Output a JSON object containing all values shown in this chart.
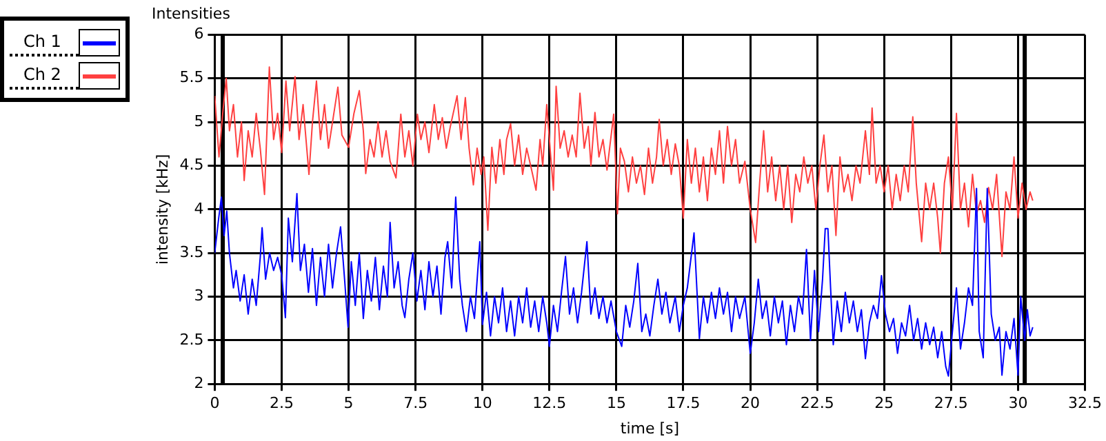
{
  "chart_data": {
    "type": "line",
    "title": "Intensities",
    "xlabel": "time [s]",
    "ylabel": "intensity [kHz]",
    "xlim": [
      0,
      32.5
    ],
    "xticks": [
      0,
      2.5,
      5,
      7.5,
      10,
      12.5,
      15,
      17.5,
      20,
      22.5,
      25,
      27.5,
      30,
      32.5
    ],
    "ylim": [
      2,
      6
    ],
    "yticks": [
      2,
      2.5,
      3,
      3.5,
      4,
      4.5,
      5,
      5.5,
      6
    ],
    "grid": true,
    "legend": "top left",
    "marker": "none",
    "line_style": "solid",
    "ref_lines": [
      {
        "axis": "x",
        "value": 0.3,
        "color": "#000000"
      },
      {
        "axis": "x",
        "value": 30.25,
        "color": "#000000"
      }
    ],
    "series": [
      {
        "name": "Ch 1",
        "color": "#0000ff",
        "x": [
          0,
          0.15,
          0.25,
          0.35,
          0.45,
          0.55,
          0.7,
          0.8,
          0.95,
          1.1,
          1.25,
          1.4,
          1.55,
          1.7,
          1.77,
          1.9,
          2.05,
          2.2,
          2.35,
          2.5,
          2.64,
          2.75,
          2.9,
          3.07,
          3.2,
          3.35,
          3.5,
          3.65,
          3.8,
          3.95,
          4.1,
          4.25,
          4.4,
          4.55,
          4.7,
          4.85,
          4.98,
          5.1,
          5.25,
          5.4,
          5.55,
          5.7,
          5.85,
          6.0,
          6.15,
          6.3,
          6.45,
          6.55,
          6.7,
          6.85,
          7.0,
          7.1,
          7.25,
          7.4,
          7.55,
          7.7,
          7.85,
          8.0,
          8.15,
          8.3,
          8.45,
          8.6,
          8.7,
          8.85,
          9.0,
          9.15,
          9.25,
          9.4,
          9.55,
          9.7,
          9.9,
          10.0,
          10.15,
          10.3,
          10.45,
          10.6,
          10.75,
          10.9,
          11.05,
          11.2,
          11.35,
          11.5,
          11.65,
          11.8,
          11.95,
          12.1,
          12.25,
          12.4,
          12.5,
          12.65,
          12.8,
          12.95,
          13.1,
          13.25,
          13.4,
          13.55,
          13.7,
          13.9,
          14.05,
          14.2,
          14.35,
          14.5,
          14.65,
          14.8,
          15.0,
          15.2,
          15.35,
          15.5,
          15.65,
          15.8,
          15.95,
          16.1,
          16.25,
          16.4,
          16.55,
          16.7,
          16.85,
          17.0,
          17.2,
          17.35,
          17.5,
          17.65,
          17.9,
          18.1,
          18.25,
          18.4,
          18.55,
          18.7,
          18.85,
          19.0,
          19.15,
          19.3,
          19.45,
          19.6,
          19.8,
          20.0,
          20.15,
          20.3,
          20.45,
          20.6,
          20.75,
          20.9,
          21.05,
          21.2,
          21.35,
          21.5,
          21.65,
          21.8,
          21.95,
          22.1,
          22.25,
          22.4,
          22.55,
          22.7,
          22.8,
          22.9,
          23.0,
          23.1,
          23.25,
          23.4,
          23.55,
          23.7,
          23.85,
          24.0,
          24.15,
          24.3,
          24.45,
          24.6,
          24.75,
          24.9,
          25.05,
          25.2,
          25.35,
          25.5,
          25.65,
          25.8,
          25.95,
          26.1,
          26.25,
          26.4,
          26.55,
          26.7,
          26.85,
          27.0,
          27.15,
          27.3,
          27.4,
          27.55,
          27.7,
          27.85,
          28.0,
          28.15,
          28.3,
          28.45,
          28.55,
          28.7,
          28.85,
          29.0,
          29.15,
          29.3,
          29.4,
          29.55,
          29.7,
          29.85,
          30.0,
          30.1,
          30.25,
          30.35,
          30.45,
          30.55
        ],
        "values": [
          3.5,
          3.9,
          4.14,
          3.7,
          3.98,
          3.5,
          3.1,
          3.3,
          2.95,
          3.25,
          2.8,
          3.2,
          2.9,
          3.45,
          3.79,
          3.2,
          3.5,
          3.3,
          3.45,
          3.25,
          2.76,
          3.9,
          3.4,
          4.18,
          3.3,
          3.6,
          3.05,
          3.55,
          2.9,
          3.45,
          3.0,
          3.6,
          3.1,
          3.5,
          3.8,
          3.2,
          2.65,
          3.4,
          2.9,
          3.5,
          2.75,
          3.3,
          2.95,
          3.45,
          2.85,
          3.35,
          3.0,
          3.85,
          3.1,
          3.4,
          2.9,
          2.76,
          3.2,
          3.5,
          2.95,
          3.3,
          2.85,
          3.4,
          3.0,
          3.35,
          2.8,
          3.45,
          3.63,
          3.1,
          4.14,
          3.2,
          2.9,
          2.6,
          3.0,
          2.75,
          3.63,
          2.68,
          3.05,
          2.55,
          3.0,
          2.7,
          3.1,
          2.6,
          2.95,
          2.55,
          3.0,
          2.7,
          3.1,
          2.65,
          2.95,
          2.6,
          3.0,
          2.7,
          2.43,
          2.9,
          2.6,
          3.05,
          3.46,
          2.8,
          3.1,
          2.7,
          3.05,
          3.63,
          2.8,
          3.1,
          2.75,
          3.0,
          2.7,
          2.95,
          2.6,
          2.43,
          2.9,
          2.65,
          2.95,
          3.38,
          2.6,
          2.8,
          2.55,
          2.9,
          3.2,
          2.8,
          3.05,
          2.7,
          3.0,
          2.6,
          2.9,
          3.1,
          3.73,
          2.52,
          3.0,
          2.7,
          3.05,
          2.75,
          3.1,
          2.8,
          3.05,
          2.6,
          3.0,
          2.75,
          3.0,
          2.35,
          2.7,
          3.2,
          2.75,
          2.95,
          2.55,
          3.0,
          2.7,
          2.95,
          2.45,
          2.9,
          2.6,
          3.0,
          2.8,
          3.54,
          2.5,
          3.3,
          2.6,
          3.2,
          3.78,
          3.78,
          3.1,
          2.45,
          2.95,
          2.6,
          3.05,
          2.7,
          2.95,
          2.6,
          2.85,
          2.29,
          2.7,
          2.9,
          2.75,
          3.24,
          2.8,
          2.6,
          2.75,
          2.35,
          2.7,
          2.55,
          2.9,
          2.5,
          2.75,
          2.4,
          2.7,
          2.45,
          2.65,
          2.3,
          2.6,
          2.2,
          2.09,
          2.6,
          3.1,
          2.4,
          2.7,
          3.1,
          2.9,
          4.24,
          2.6,
          2.3,
          4.24,
          2.8,
          2.5,
          2.65,
          2.1,
          2.6,
          2.4,
          2.75,
          2.1,
          3.0,
          2.5,
          2.85,
          2.55,
          2.65
        ]
      },
      {
        "name": "Ch 2",
        "color": "#ff4040",
        "x": [
          0,
          0.16,
          0.3,
          0.43,
          0.55,
          0.7,
          0.85,
          1.0,
          1.1,
          1.25,
          1.4,
          1.55,
          1.7,
          1.86,
          2.04,
          2.2,
          2.35,
          2.5,
          2.66,
          2.8,
          3.0,
          3.15,
          3.3,
          3.52,
          3.65,
          3.8,
          3.95,
          4.1,
          4.25,
          4.4,
          4.6,
          4.75,
          5.0,
          5.2,
          5.4,
          5.55,
          5.64,
          5.8,
          5.95,
          6.1,
          6.25,
          6.4,
          6.55,
          6.77,
          6.95,
          7.1,
          7.25,
          7.4,
          7.57,
          7.7,
          7.85,
          8.0,
          8.2,
          8.35,
          8.5,
          8.65,
          8.8,
          9.05,
          9.2,
          9.36,
          9.5,
          9.66,
          9.8,
          9.95,
          10.05,
          10.2,
          10.35,
          10.5,
          10.65,
          10.8,
          10.9,
          11.05,
          11.2,
          11.35,
          11.5,
          11.65,
          11.8,
          12.0,
          12.15,
          12.25,
          12.4,
          12.55,
          12.65,
          12.75,
          12.9,
          13.05,
          13.2,
          13.35,
          13.5,
          13.64,
          13.8,
          13.95,
          14.05,
          14.2,
          14.35,
          14.5,
          14.65,
          14.9,
          15.04,
          15.15,
          15.3,
          15.45,
          15.6,
          15.75,
          15.9,
          16.05,
          16.2,
          16.35,
          16.5,
          16.6,
          16.75,
          16.9,
          17.05,
          17.2,
          17.35,
          17.5,
          17.65,
          17.8,
          17.95,
          18.1,
          18.25,
          18.4,
          18.55,
          18.7,
          18.85,
          19.0,
          19.15,
          19.3,
          19.45,
          19.6,
          19.8,
          20.0,
          20.2,
          20.35,
          20.5,
          20.65,
          20.8,
          20.95,
          21.1,
          21.25,
          21.4,
          21.55,
          21.7,
          21.85,
          22.0,
          22.15,
          22.3,
          22.45,
          22.6,
          22.75,
          22.9,
          23.05,
          23.2,
          23.35,
          23.5,
          23.65,
          23.8,
          23.95,
          24.1,
          24.3,
          24.45,
          24.55,
          24.7,
          24.85,
          25.0,
          25.15,
          25.3,
          25.45,
          25.6,
          25.75,
          25.9,
          26.07,
          26.2,
          26.4,
          26.55,
          26.7,
          26.85,
          27.0,
          27.1,
          27.25,
          27.4,
          27.55,
          27.7,
          27.85,
          28.0,
          28.15,
          28.3,
          28.45,
          28.6,
          28.75,
          28.9,
          29.05,
          29.2,
          29.4,
          29.55,
          29.7,
          29.85,
          30.0,
          30.15,
          30.3,
          30.45,
          30.55
        ],
        "values": [
          5.3,
          4.6,
          5.1,
          5.5,
          4.9,
          5.2,
          4.6,
          5.0,
          4.33,
          4.9,
          4.6,
          5.1,
          4.7,
          4.17,
          5.63,
          4.8,
          5.1,
          4.65,
          5.47,
          4.9,
          5.52,
          4.8,
          5.2,
          4.4,
          5.0,
          5.47,
          4.8,
          5.2,
          4.7,
          5.0,
          5.4,
          4.85,
          4.71,
          5.1,
          5.36,
          4.9,
          4.41,
          4.8,
          4.6,
          5.0,
          4.6,
          4.9,
          4.55,
          4.36,
          5.09,
          4.6,
          4.9,
          4.5,
          5.09,
          4.8,
          5.0,
          4.65,
          5.2,
          4.8,
          5.05,
          4.7,
          4.95,
          5.3,
          4.8,
          5.28,
          4.7,
          4.28,
          4.7,
          4.4,
          4.6,
          3.76,
          4.71,
          4.3,
          4.8,
          4.4,
          4.8,
          4.98,
          4.5,
          4.85,
          4.4,
          4.7,
          4.5,
          4.22,
          4.8,
          4.5,
          5.2,
          4.6,
          4.22,
          5.41,
          4.7,
          4.9,
          4.6,
          4.85,
          4.6,
          5.33,
          4.7,
          4.95,
          4.5,
          5.11,
          4.6,
          4.8,
          4.45,
          5.09,
          3.95,
          4.7,
          4.55,
          4.2,
          4.6,
          4.3,
          4.5,
          4.17,
          4.7,
          4.3,
          4.6,
          5.03,
          4.5,
          4.8,
          4.4,
          4.75,
          4.5,
          3.9,
          4.8,
          4.3,
          4.7,
          4.2,
          4.6,
          4.1,
          4.7,
          4.4,
          4.9,
          4.3,
          4.95,
          4.5,
          4.8,
          4.3,
          4.55,
          4.0,
          3.62,
          4.3,
          4.9,
          4.2,
          4.6,
          4.1,
          4.5,
          4.0,
          4.5,
          3.85,
          4.4,
          4.2,
          4.6,
          4.3,
          4.5,
          4.0,
          4.5,
          4.85,
          4.2,
          4.5,
          3.7,
          4.6,
          4.2,
          4.4,
          4.1,
          4.5,
          4.3,
          4.9,
          4.4,
          5.16,
          4.3,
          4.5,
          4.2,
          4.5,
          4.0,
          4.4,
          4.1,
          4.5,
          4.2,
          5.06,
          4.3,
          3.63,
          4.3,
          4.0,
          4.3,
          3.9,
          3.5,
          4.3,
          4.6,
          4.0,
          5.1,
          4.0,
          4.3,
          3.8,
          4.4,
          3.95,
          4.1,
          3.85,
          4.25,
          4.0,
          4.4,
          3.46,
          4.2,
          4.0,
          4.6,
          3.9,
          4.3,
          4.0,
          4.2,
          4.1
        ]
      }
    ]
  }
}
